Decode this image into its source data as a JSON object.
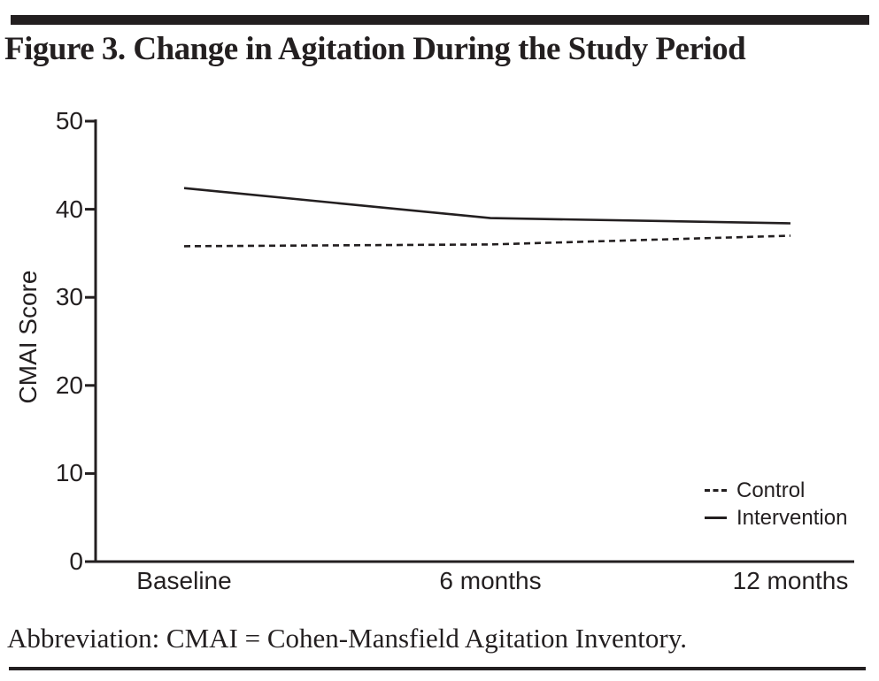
{
  "figure": {
    "title": "Figure 3. Change in Agitation During the Study Period",
    "footnote": "Abbreviation: CMAI = Cohen-Mansfield Agitation Inventory."
  },
  "chart_data": {
    "type": "line",
    "title": "Figure 3. Change in Agitation During the Study Period",
    "categories": [
      "Baseline",
      "6 months",
      "12 months"
    ],
    "series": [
      {
        "name": "Control",
        "line_style": "dashed",
        "values": [
          35.8,
          36.0,
          37.0
        ]
      },
      {
        "name": "Intervention",
        "line_style": "solid",
        "values": [
          42.4,
          39.0,
          38.4
        ]
      }
    ],
    "xlabel": "",
    "ylabel": "CMAI Score",
    "ylim": [
      0,
      50
    ],
    "yticks": [
      0,
      10,
      20,
      30,
      40,
      50
    ],
    "grid": false,
    "legend_position": "lower-right",
    "line_color": "#231f20",
    "background_color": "#ffffff"
  }
}
